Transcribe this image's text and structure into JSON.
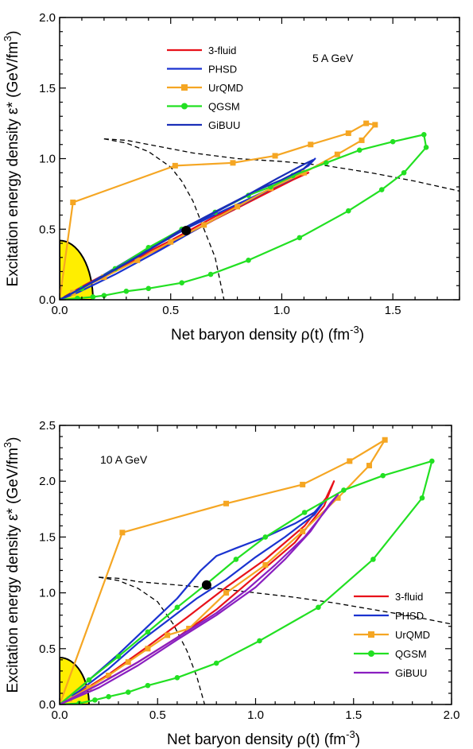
{
  "chart_data": [
    {
      "type": "line",
      "annotation": "5 A GeV",
      "xlabel": "Net baryon density ρ(t) (fm",
      "xlabel_sup": "-3",
      "xlabel_end": ")",
      "ylabel": "Excitation energy density ε* (GeV/fm",
      "ylabel_sup": "3",
      "ylabel_end": ")",
      "xlim": [
        0,
        1.8
      ],
      "ylim": [
        0,
        2.0
      ],
      "xticks": [
        "0.0",
        "0.5",
        "1.0",
        "1.5"
      ],
      "xtick_values": [
        0,
        0.5,
        1.0,
        1.5
      ],
      "yticks": [
        "0.0",
        "0.5",
        "1.0",
        "1.5",
        "2.0"
      ],
      "ytick_values": [
        0,
        0.5,
        1.0,
        1.5,
        2.0
      ],
      "legend_position": "top-left",
      "series": [
        {
          "name": "3-fluid",
          "color": "#e8121a",
          "marker": "none",
          "points": [
            [
              0,
              0
            ],
            [
              0.12,
              0.1
            ],
            [
              0.3,
              0.25
            ],
            [
              0.5,
              0.4
            ],
            [
              0.7,
              0.57
            ],
            [
              0.9,
              0.73
            ],
            [
              1.05,
              0.85
            ],
            [
              1.12,
              0.9
            ],
            [
              1.05,
              0.86
            ],
            [
              0.9,
              0.74
            ],
            [
              0.7,
              0.59
            ],
            [
              0.5,
              0.42
            ],
            [
              0.3,
              0.26
            ],
            [
              0.12,
              0.11
            ],
            [
              0.02,
              0.02
            ]
          ]
        },
        {
          "name": "PHSD",
          "color": "#1a33d0",
          "marker": "none",
          "points": [
            [
              0,
              0
            ],
            [
              0.15,
              0.13
            ],
            [
              0.35,
              0.32
            ],
            [
              0.55,
              0.49
            ],
            [
              0.75,
              0.64
            ],
            [
              0.9,
              0.75
            ],
            [
              1.05,
              0.86
            ],
            [
              1.13,
              0.97
            ],
            [
              1.15,
              1.0
            ],
            [
              1.12,
              0.95
            ],
            [
              1.0,
              0.83
            ],
            [
              0.85,
              0.7
            ],
            [
              0.65,
              0.53
            ],
            [
              0.45,
              0.35
            ],
            [
              0.25,
              0.18
            ],
            [
              0.08,
              0.05
            ],
            [
              0,
              0
            ]
          ]
        },
        {
          "name": "UrQMD",
          "color": "#f5a623",
          "marker": "square",
          "points": [
            [
              0,
              0
            ],
            [
              0.06,
              0.69
            ],
            [
              0.52,
              0.95
            ],
            [
              0.78,
              0.97
            ],
            [
              0.97,
              1.02
            ],
            [
              1.13,
              1.1
            ],
            [
              1.3,
              1.18
            ],
            [
              1.38,
              1.25
            ],
            [
              1.42,
              1.24
            ],
            [
              1.36,
              1.13
            ],
            [
              1.25,
              1.03
            ],
            [
              1.1,
              0.9
            ],
            [
              0.95,
              0.79
            ],
            [
              0.8,
              0.66
            ],
            [
              0.65,
              0.53
            ],
            [
              0.5,
              0.41
            ],
            [
              0.35,
              0.28
            ],
            [
              0.2,
              0.16
            ],
            [
              0.06,
              0.05
            ]
          ]
        },
        {
          "name": "QGSM",
          "color": "#22e022",
          "marker": "circle",
          "points": [
            [
              0,
              0
            ],
            [
              0.08,
              0.01
            ],
            [
              0.15,
              0.02
            ],
            [
              0.2,
              0.03
            ],
            [
              0.3,
              0.06
            ],
            [
              0.4,
              0.08
            ],
            [
              0.55,
              0.12
            ],
            [
              0.68,
              0.18
            ],
            [
              0.85,
              0.28
            ],
            [
              1.08,
              0.44
            ],
            [
              1.3,
              0.63
            ],
            [
              1.45,
              0.78
            ],
            [
              1.55,
              0.9
            ],
            [
              1.65,
              1.08
            ],
            [
              1.64,
              1.17
            ],
            [
              1.5,
              1.12
            ],
            [
              1.35,
              1.06
            ],
            [
              1.2,
              0.97
            ],
            [
              1.05,
              0.88
            ],
            [
              0.95,
              0.8
            ],
            [
              0.85,
              0.74
            ],
            [
              0.7,
              0.62
            ],
            [
              0.55,
              0.5
            ],
            [
              0.4,
              0.37
            ],
            [
              0.25,
              0.22
            ],
            [
              0.1,
              0.08
            ],
            [
              0,
              0
            ]
          ]
        },
        {
          "name": "GiBUU",
          "color": "#1a2fb8",
          "marker": "none",
          "points": [
            [
              0,
              0
            ],
            [
              0.18,
              0.15
            ],
            [
              0.38,
              0.33
            ],
            [
              0.55,
              0.5
            ],
            [
              0.72,
              0.64
            ],
            [
              0.88,
              0.77
            ],
            [
              1.0,
              0.85
            ],
            [
              1.1,
              0.93
            ],
            [
              1.14,
              0.99
            ],
            [
              1.1,
              0.96
            ],
            [
              0.98,
              0.86
            ],
            [
              0.82,
              0.72
            ],
            [
              0.62,
              0.55
            ],
            [
              0.42,
              0.37
            ],
            [
              0.22,
              0.19
            ],
            [
              0.05,
              0.04
            ],
            [
              0,
              0
            ]
          ]
        }
      ],
      "dashed_lines": [
        [
          [
            0.2,
            1.14
          ],
          [
            0.3,
            1.13
          ],
          [
            0.4,
            1.1
          ],
          [
            0.5,
            1.07
          ],
          [
            0.6,
            1.04
          ],
          [
            0.8,
            1.0
          ],
          [
            1.0,
            0.98
          ],
          [
            1.2,
            0.95
          ],
          [
            1.4,
            0.9
          ],
          [
            1.6,
            0.84
          ],
          [
            1.8,
            0.77
          ]
        ],
        [
          [
            0.2,
            1.14
          ],
          [
            0.3,
            1.11
          ],
          [
            0.4,
            1.05
          ],
          [
            0.5,
            0.94
          ],
          [
            0.55,
            0.84
          ],
          [
            0.6,
            0.7
          ],
          [
            0.65,
            0.5
          ],
          [
            0.7,
            0.3
          ],
          [
            0.74,
            0.0
          ]
        ]
      ],
      "marker_point": [
        0.57,
        0.49
      ],
      "yellow_region_radius_x": 0.15,
      "yellow_region_radius_y": 0.42
    },
    {
      "type": "line",
      "annotation": "10 A GeV",
      "xlabel": "Net baryon density ρ(t) (fm",
      "xlabel_sup": "-3",
      "xlabel_end": ")",
      "ylabel": "Excitation energy density ε* (GeV/fm",
      "ylabel_sup": "3",
      "ylabel_end": ")",
      "xlim": [
        0,
        2.0
      ],
      "ylim": [
        0,
        2.5
      ],
      "xticks": [
        "0.0",
        "0.5",
        "1.0",
        "1.5",
        "2.0"
      ],
      "xtick_values": [
        0,
        0.5,
        1.0,
        1.5,
        2.0
      ],
      "yticks": [
        "0.0",
        "0.5",
        "1.0",
        "1.5",
        "2.0",
        "2.5"
      ],
      "ytick_values": [
        0,
        0.5,
        1.0,
        1.5,
        2.0,
        2.5
      ],
      "legend_position": "bottom-right",
      "series": [
        {
          "name": "3-fluid",
          "color": "#e8121a",
          "marker": "none",
          "points": [
            [
              0,
              0
            ],
            [
              0.2,
              0.18
            ],
            [
              0.4,
              0.38
            ],
            [
              0.6,
              0.6
            ],
            [
              0.8,
              0.85
            ],
            [
              1.0,
              1.15
            ],
            [
              1.2,
              1.45
            ],
            [
              1.35,
              1.78
            ],
            [
              1.4,
              2.0
            ],
            [
              1.36,
              1.85
            ],
            [
              1.25,
              1.6
            ],
            [
              1.05,
              1.3
            ],
            [
              0.85,
              1.05
            ],
            [
              0.65,
              0.78
            ],
            [
              0.45,
              0.52
            ],
            [
              0.25,
              0.27
            ],
            [
              0.05,
              0.05
            ]
          ]
        },
        {
          "name": "PHSD",
          "color": "#1a33d0",
          "marker": "none",
          "points": [
            [
              0,
              0
            ],
            [
              0.15,
              0.22
            ],
            [
              0.3,
              0.45
            ],
            [
              0.45,
              0.7
            ],
            [
              0.6,
              0.95
            ],
            [
              0.72,
              1.2
            ],
            [
              0.8,
              1.33
            ],
            [
              0.9,
              1.4
            ],
            [
              1.05,
              1.5
            ],
            [
              1.2,
              1.62
            ],
            [
              1.3,
              1.72
            ],
            [
              1.35,
              1.82
            ],
            [
              1.3,
              1.7
            ],
            [
              1.15,
              1.5
            ],
            [
              1.0,
              1.32
            ],
            [
              0.85,
              1.12
            ],
            [
              0.7,
              0.95
            ],
            [
              0.55,
              0.75
            ],
            [
              0.4,
              0.55
            ],
            [
              0.25,
              0.32
            ],
            [
              0.1,
              0.12
            ],
            [
              0,
              0
            ]
          ]
        },
        {
          "name": "UrQMD",
          "color": "#f5a623",
          "marker": "square",
          "points": [
            [
              0,
              0
            ],
            [
              0.32,
              1.54
            ],
            [
              0.85,
              1.8
            ],
            [
              1.24,
              1.97
            ],
            [
              1.48,
              2.18
            ],
            [
              1.66,
              2.37
            ],
            [
              1.58,
              2.14
            ],
            [
              1.42,
              1.85
            ],
            [
              1.24,
              1.55
            ],
            [
              1.05,
              1.25
            ],
            [
              0.85,
              1.0
            ],
            [
              0.66,
              0.68
            ],
            [
              0.55,
              0.62
            ],
            [
              0.45,
              0.5
            ],
            [
              0.35,
              0.38
            ],
            [
              0.25,
              0.26
            ],
            [
              0.15,
              0.15
            ],
            [
              0.05,
              0.05
            ]
          ]
        },
        {
          "name": "QGSM",
          "color": "#22e022",
          "marker": "circle",
          "points": [
            [
              0,
              0
            ],
            [
              0.1,
              0.01
            ],
            [
              0.18,
              0.04
            ],
            [
              0.25,
              0.07
            ],
            [
              0.35,
              0.11
            ],
            [
              0.45,
              0.17
            ],
            [
              0.6,
              0.24
            ],
            [
              0.8,
              0.37
            ],
            [
              1.02,
              0.57
            ],
            [
              1.32,
              0.87
            ],
            [
              1.6,
              1.3
            ],
            [
              1.85,
              1.85
            ],
            [
              1.9,
              2.18
            ],
            [
              1.65,
              2.05
            ],
            [
              1.45,
              1.92
            ],
            [
              1.25,
              1.72
            ],
            [
              1.05,
              1.5
            ],
            [
              0.9,
              1.3
            ],
            [
              0.75,
              1.08
            ],
            [
              0.6,
              0.87
            ],
            [
              0.45,
              0.65
            ],
            [
              0.3,
              0.43
            ],
            [
              0.15,
              0.22
            ],
            [
              0,
              0
            ]
          ]
        },
        {
          "name": "GiBUU",
          "color": "#8a1fc0",
          "marker": "none",
          "points": [
            [
              0,
              0
            ],
            [
              0.2,
              0.15
            ],
            [
              0.4,
              0.35
            ],
            [
              0.6,
              0.58
            ],
            [
              0.8,
              0.8
            ],
            [
              1.0,
              1.05
            ],
            [
              1.15,
              1.3
            ],
            [
              1.28,
              1.55
            ],
            [
              1.38,
              1.8
            ],
            [
              1.42,
              1.88
            ],
            [
              1.35,
              1.72
            ],
            [
              1.25,
              1.5
            ],
            [
              1.1,
              1.25
            ],
            [
              0.95,
              1.02
            ],
            [
              0.8,
              0.82
            ],
            [
              0.6,
              0.6
            ],
            [
              0.4,
              0.38
            ],
            [
              0.2,
              0.18
            ],
            [
              0,
              0
            ]
          ]
        }
      ],
      "dashed_lines": [
        [
          [
            0.2,
            1.14
          ],
          [
            0.3,
            1.13
          ],
          [
            0.4,
            1.1
          ],
          [
            0.6,
            1.07
          ],
          [
            0.8,
            1.04
          ],
          [
            1.0,
            1.0
          ],
          [
            1.2,
            0.96
          ],
          [
            1.4,
            0.91
          ],
          [
            1.6,
            0.85
          ],
          [
            1.8,
            0.79
          ],
          [
            2.0,
            0.72
          ]
        ],
        [
          [
            0.2,
            1.14
          ],
          [
            0.3,
            1.11
          ],
          [
            0.4,
            1.04
          ],
          [
            0.5,
            0.92
          ],
          [
            0.58,
            0.72
          ],
          [
            0.65,
            0.48
          ],
          [
            0.7,
            0.25
          ],
          [
            0.74,
            0.0
          ]
        ]
      ],
      "marker_point": [
        0.75,
        1.07
      ],
      "yellow_region_radius_x": 0.15,
      "yellow_region_radius_y": 0.42
    }
  ]
}
